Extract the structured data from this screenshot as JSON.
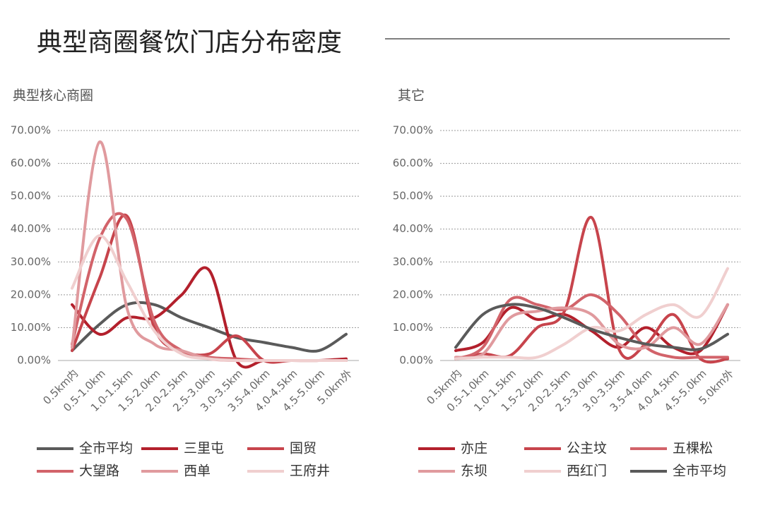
{
  "title": "典型商圈餐饮门店分布密度",
  "chart_data": [
    {
      "type": "line",
      "title": "典型核心商圈",
      "categories": [
        "0.5km内",
        "0.5-1.0km",
        "1.0-1.5km",
        "1.5-2.0km",
        "2.0-2.5km",
        "2.5-3.0km",
        "3.0-3.5km",
        "3.5-4.0km",
        "4.0-4.5km",
        "4.5-5.0km",
        "5.0km外"
      ],
      "ylim": [
        0,
        70
      ],
      "yticks": [
        {
          "value": 0,
          "label": "0.00%"
        },
        {
          "value": 10,
          "label": "10.00%"
        },
        {
          "value": 20,
          "label": "20.00%"
        },
        {
          "value": 30,
          "label": "30.00%"
        },
        {
          "value": 40,
          "label": "40.00%"
        },
        {
          "value": 50,
          "label": "50.00%"
        },
        {
          "value": 60,
          "label": "60.00%"
        },
        {
          "value": 70,
          "label": "70.00%"
        }
      ],
      "grid": true,
      "series": [
        {
          "name": "全市平均",
          "color": "#5a5a5a",
          "values": [
            3,
            11,
            17,
            17,
            13,
            10,
            7,
            5.5,
            4,
            3,
            8
          ]
        },
        {
          "name": "三里屯",
          "color": "#b3202c",
          "values": [
            17,
            8,
            13,
            13,
            20,
            27.5,
            0,
            0,
            0,
            0,
            0.5
          ]
        },
        {
          "name": "国贸",
          "color": "#c7444c",
          "values": [
            3,
            25,
            44,
            10,
            3,
            2,
            7.5,
            0,
            0,
            0,
            0
          ]
        },
        {
          "name": "大望路",
          "color": "#d2636a",
          "values": [
            5,
            37,
            43,
            12,
            3,
            1,
            0.5,
            0,
            0,
            0,
            0
          ]
        },
        {
          "name": "西单",
          "color": "#e09a9e",
          "values": [
            4,
            66.5,
            16,
            5,
            3,
            0.5,
            0,
            0,
            0,
            0,
            0
          ]
        },
        {
          "name": "王府井",
          "color": "#f0cfcf",
          "values": [
            22,
            38,
            24,
            9,
            2,
            0.5,
            0,
            0,
            0,
            0,
            0
          ]
        }
      ]
    },
    {
      "type": "line",
      "title": "其它",
      "categories": [
        "0.5km内",
        "0.5-1.0km",
        "1.0-1.5km",
        "1.5-2.0km",
        "2.0-2.5km",
        "2.5-3.0km",
        "3.0-3.5km",
        "3.5-4.0km",
        "4.0-4.5km",
        "4.5-5.0km",
        "5.0km外"
      ],
      "ylim": [
        0,
        70
      ],
      "yticks": [
        {
          "value": 0,
          "label": "0.00%"
        },
        {
          "value": 10,
          "label": "10.00%"
        },
        {
          "value": 20,
          "label": "20.00%"
        },
        {
          "value": 30,
          "label": "30.00%"
        },
        {
          "value": 40,
          "label": "40.00%"
        },
        {
          "value": 50,
          "label": "50.00%"
        },
        {
          "value": 60,
          "label": "60.00%"
        },
        {
          "value": 70,
          "label": "70.00%"
        }
      ],
      "grid": true,
      "series": [
        {
          "name": "亦庄",
          "color": "#b3202c",
          "values": [
            3,
            5.5,
            16,
            12.5,
            14,
            9,
            4,
            10,
            4,
            3,
            17
          ]
        },
        {
          "name": "公主坟",
          "color": "#c7444c",
          "values": [
            0.5,
            2,
            1.5,
            10,
            15,
            43.5,
            3.5,
            5,
            14,
            0.5,
            0.5
          ]
        },
        {
          "name": "五棵松",
          "color": "#d2636a",
          "values": [
            0.5,
            4,
            18.5,
            17,
            15.5,
            20,
            14,
            4,
            1,
            1,
            1
          ]
        },
        {
          "name": "东坝",
          "color": "#e09a9e",
          "values": [
            1,
            2,
            13,
            15,
            16,
            14,
            5,
            4,
            10,
            5,
            17
          ]
        },
        {
          "name": "西红门",
          "color": "#f0cfcf",
          "values": [
            0.5,
            1,
            1,
            1,
            5,
            10,
            9,
            14,
            17,
            13.5,
            28
          ]
        },
        {
          "name": "全市平均",
          "color": "#5a5a5a",
          "values": [
            4,
            14,
            17,
            16,
            13,
            9.5,
            7,
            5,
            4,
            3.5,
            8
          ]
        }
      ]
    }
  ]
}
